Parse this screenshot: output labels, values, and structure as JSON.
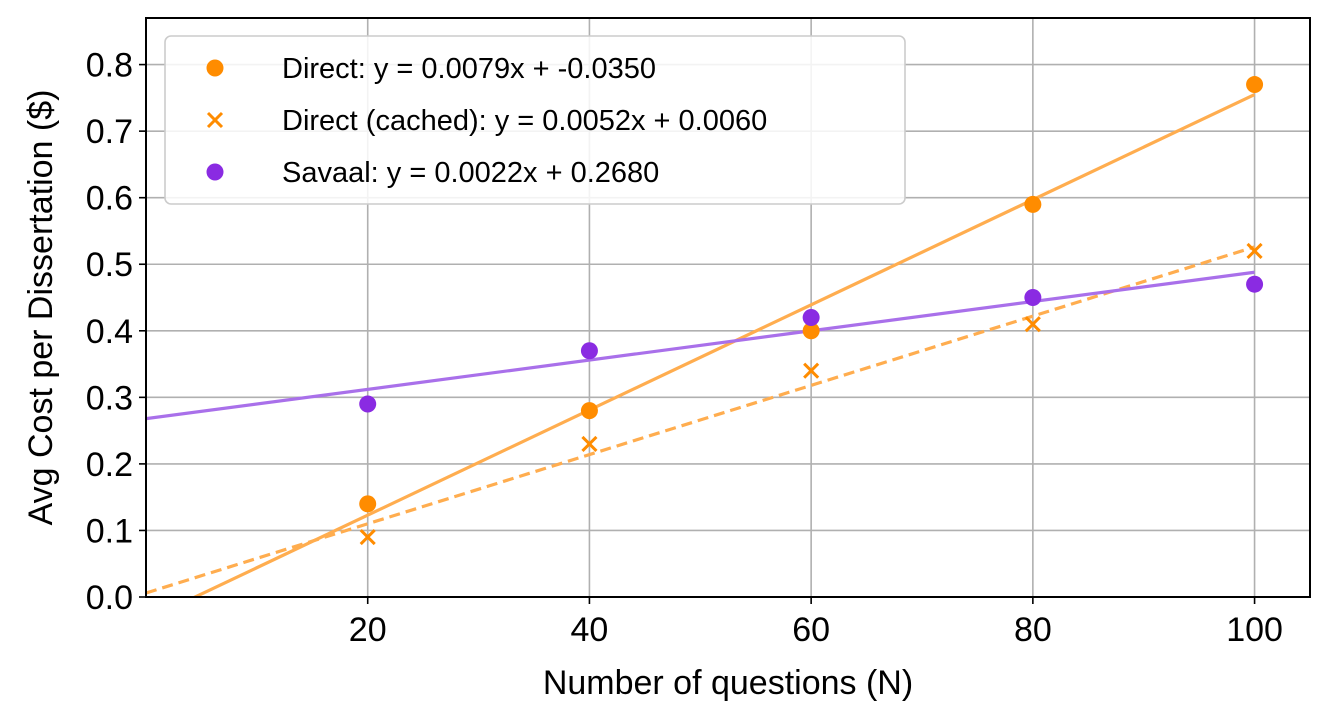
{
  "chart_data": {
    "type": "scatter",
    "xlabel": "Number of questions (N)",
    "ylabel": "Avg Cost per Dissertation ($)",
    "xlim": [
      0,
      105
    ],
    "ylim": [
      0,
      0.87
    ],
    "x_ticks": [
      20,
      40,
      60,
      80,
      100
    ],
    "x_tick_labels": [
      "20",
      "40",
      "60",
      "80",
      "100"
    ],
    "y_ticks": [
      0.0,
      0.1,
      0.2,
      0.3,
      0.4,
      0.5,
      0.6,
      0.7,
      0.8
    ],
    "y_tick_labels": [
      "0.0",
      "0.1",
      "0.2",
      "0.3",
      "0.4",
      "0.5",
      "0.6",
      "0.7",
      "0.8"
    ],
    "grid": true,
    "legend_position": "top-left",
    "series": [
      {
        "name": "Direct: y = 0.0079x + -0.0350",
        "marker": "circle",
        "color": "#ff8c00",
        "x": [
          20,
          40,
          60,
          80,
          100
        ],
        "y": [
          0.14,
          0.28,
          0.4,
          0.59,
          0.77
        ],
        "fit": {
          "slope": 0.0079,
          "intercept": -0.035,
          "line_style": "solid",
          "color": "#ffad4f"
        }
      },
      {
        "name": "Direct (cached): y = 0.0052x + 0.0060",
        "marker": "x",
        "color": "#ff8c00",
        "x": [
          20,
          40,
          60,
          80,
          100
        ],
        "y": [
          0.09,
          0.23,
          0.34,
          0.41,
          0.52
        ],
        "fit": {
          "slope": 0.0052,
          "intercept": 0.006,
          "line_style": "dashed",
          "color": "#ffad4f"
        }
      },
      {
        "name": "Savaal: y = 0.0022x + 0.2680",
        "marker": "circle",
        "color": "#8a2be2",
        "x": [
          20,
          40,
          60,
          80,
          100
        ],
        "y": [
          0.29,
          0.37,
          0.42,
          0.45,
          0.47
        ],
        "fit": {
          "slope": 0.0022,
          "intercept": 0.268,
          "line_style": "solid",
          "color": "#a970ea"
        }
      }
    ]
  }
}
